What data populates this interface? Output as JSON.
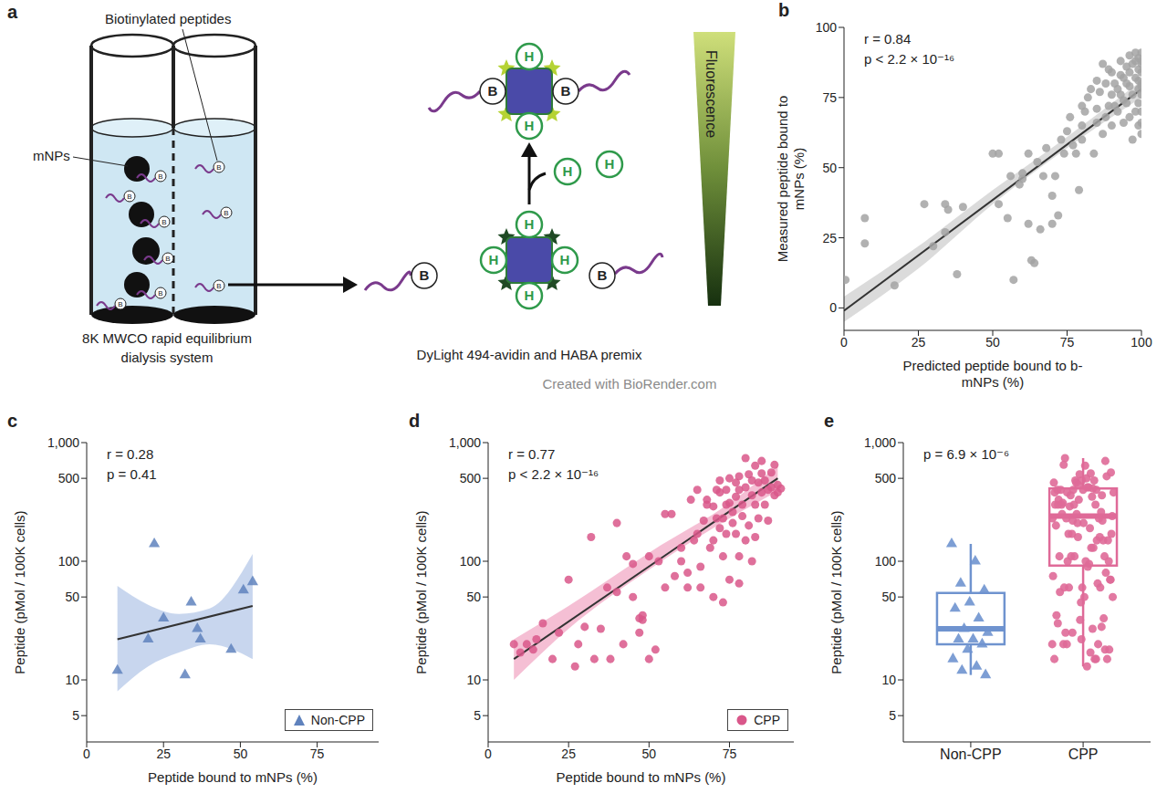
{
  "diagram": {
    "panel": "a",
    "peptide_label": "Biotinylated peptides",
    "particle_label": "mNPs",
    "dialysis_label": "8K MWCO rapid equilibrium dialysis system",
    "premix_label": "DyLight 494-avidin and HABA premix",
    "gradient_label": "Fluorescence",
    "credit": "Created with BioRender.com",
    "biotin_symbol": "B",
    "haba_symbol": "H"
  },
  "chart_data": [
    {
      "panel": "b",
      "type": "scatter",
      "x_label": "Predicted peptide bound to b-mNPs (%)",
      "y_label": "Measured peptide bound to mNPs (%)",
      "xlim": [
        0,
        100
      ],
      "xticks": [
        0,
        25,
        50,
        75,
        100
      ],
      "ylim": [
        -8,
        100
      ],
      "yticks": [
        0,
        25,
        50,
        75,
        100
      ],
      "annotations": [
        "r = 0.84",
        "p < 2.2 × 10⁻¹⁶"
      ],
      "series": [
        {
          "type": "area",
          "color": "#cfcfcf",
          "x": [
            0,
            25,
            50,
            75,
            100
          ],
          "lower": [
            -5,
            14,
            37,
            57,
            75
          ],
          "upper": [
            4,
            22,
            42,
            61,
            81
          ]
        },
        {
          "type": "line",
          "color": "#333333",
          "x": [
            0,
            100
          ],
          "values": [
            -1,
            78
          ]
        },
        {
          "type": "scatter",
          "color": "#a3a3a3",
          "marker": "circle",
          "x": [
            0.5,
            7,
            7,
            17,
            27,
            30,
            34,
            35,
            34,
            38,
            40,
            50,
            52,
            52,
            55,
            56,
            57,
            59,
            60,
            60,
            62,
            62,
            63,
            64,
            65,
            66,
            67,
            68,
            70,
            70,
            71,
            72,
            73,
            74,
            75,
            76,
            77,
            78,
            79,
            80,
            80,
            80,
            81,
            82,
            83,
            84,
            85,
            85,
            85,
            86,
            87,
            87,
            88,
            88,
            89,
            89,
            90,
            90,
            90,
            91,
            91,
            92,
            92,
            93,
            93,
            93,
            94,
            94,
            94,
            95,
            95,
            95,
            96,
            96,
            96,
            96,
            97,
            97,
            97,
            98,
            98,
            98,
            98,
            99,
            99,
            99,
            99,
            99,
            99,
            100,
            100,
            100,
            100,
            100,
            100,
            100,
            100,
            100,
            100
          ],
          "values": [
            10,
            32,
            23,
            8,
            37,
            22,
            37,
            35,
            27,
            12,
            36,
            55,
            55,
            37,
            32,
            47,
            10,
            44,
            48,
            46,
            30,
            55,
            17,
            16,
            52,
            28,
            47,
            57,
            40,
            30,
            47,
            33,
            60,
            55,
            63,
            68,
            58,
            55,
            42,
            65,
            60,
            72,
            70,
            75,
            78,
            55,
            71,
            66,
            81,
            77,
            62,
            87,
            80,
            68,
            72,
            85,
            65,
            76,
            84,
            80,
            72,
            70,
            78,
            88,
            83,
            76,
            82,
            66,
            74,
            86,
            80,
            73,
            90,
            68,
            79,
            84,
            60,
            87,
            76,
            82,
            88,
            70,
            91,
            85,
            78,
            65,
            89,
            73,
            81,
            87,
            80,
            76,
            91,
            70,
            84,
            62,
            88,
            79,
            66
          ]
        }
      ]
    },
    {
      "panel": "c",
      "type": "scatter",
      "log": "y",
      "legend": "lower right",
      "x_label": "Peptide bound to mNPs (%)",
      "y_label": "Peptide (pMol / 100K cells)",
      "xlim": [
        0,
        95
      ],
      "xticks": [
        0,
        25,
        50,
        75
      ],
      "ylim": [
        3,
        1000
      ],
      "yticks": [
        5,
        10,
        50,
        100,
        500,
        {
          "value": 1000,
          "label": "1,000"
        }
      ],
      "annotations": [
        "r = 0.28",
        "p = 0.41"
      ],
      "series": [
        {
          "type": "area",
          "color": "#b5c8e8",
          "x": [
            10,
            20,
            30,
            40,
            54
          ],
          "lower": [
            8,
            13,
            17,
            20,
            15
          ],
          "upper": [
            62,
            43,
            36,
            40,
            115
          ]
        },
        {
          "type": "line",
          "color": "#333333",
          "x": [
            10,
            54
          ],
          "values": [
            22,
            42
          ]
        },
        {
          "type": "scatter",
          "name": "Non-CPP",
          "color": "#5f82bd",
          "marker": "triangle",
          "x": [
            10,
            20,
            22,
            25,
            32,
            34,
            36,
            37,
            47,
            51,
            54
          ],
          "values": [
            12,
            22,
            140,
            33,
            11,
            45,
            27,
            22,
            18,
            57,
            67
          ]
        }
      ]
    },
    {
      "panel": "d",
      "type": "scatter",
      "log": "y",
      "legend": "lower right",
      "x_label": "Peptide bound to mNPs (%)",
      "y_label": "Peptide (pMol / 100K cells)",
      "xlim": [
        0,
        95
      ],
      "xticks": [
        0,
        25,
        50,
        75
      ],
      "ylim": [
        3,
        1000
      ],
      "yticks": [
        5,
        10,
        50,
        100,
        500,
        {
          "value": 1000,
          "label": "1,000"
        }
      ],
      "annotations": [
        "r = 0.77",
        "p < 2.2 × 10⁻¹⁶"
      ],
      "series": [
        {
          "type": "area",
          "color": "#f2aac6",
          "x": [
            8,
            25,
            50,
            75,
            90
          ],
          "lower": [
            10,
            27,
            85,
            230,
            390
          ],
          "upper": [
            22,
            42,
            118,
            310,
            640
          ]
        },
        {
          "type": "line",
          "color": "#333333",
          "x": [
            8,
            90
          ],
          "values": [
            15,
            500
          ]
        },
        {
          "type": "scatter",
          "name": "CPP",
          "color": "#d9578a",
          "marker": "circle",
          "x": [
            8,
            10,
            12,
            14,
            15,
            17,
            20,
            22,
            25,
            27,
            28,
            30,
            32,
            33,
            35,
            37,
            38,
            40,
            40,
            42,
            43,
            45,
            45,
            47,
            47,
            48,
            48,
            50,
            50,
            52,
            53,
            55,
            55,
            57,
            58,
            60,
            60,
            62,
            62,
            63,
            64,
            65,
            65,
            66,
            66,
            67,
            68,
            68,
            69,
            70,
            70,
            70,
            71,
            71,
            72,
            72,
            72,
            73,
            73,
            73,
            74,
            74,
            74,
            75,
            75,
            75,
            76,
            76,
            77,
            77,
            77,
            78,
            78,
            78,
            78,
            79,
            79,
            80,
            80,
            80,
            81,
            81,
            82,
            82,
            82,
            83,
            83,
            83,
            84,
            84,
            85,
            85,
            85,
            86,
            86,
            87,
            87,
            88,
            88,
            89,
            89,
            90,
            90,
            91
          ],
          "values": [
            20,
            17,
            20,
            18,
            22,
            30,
            15,
            25,
            70,
            13,
            20,
            28,
            160,
            15,
            27,
            60,
            15,
            210,
            55,
            20,
            110,
            50,
            95,
            25,
            33,
            32,
            35,
            15,
            110,
            18,
            100,
            250,
            60,
            250,
            75,
            130,
            100,
            80,
            60,
            330,
            150,
            400,
            170,
            90,
            60,
            220,
            330,
            300,
            130,
            290,
            150,
            50,
            400,
            230,
            480,
            380,
            190,
            230,
            110,
            45,
            400,
            300,
            170,
            70,
            500,
            310,
            260,
            210,
            460,
            350,
            170,
            520,
            400,
            110,
            65,
            300,
            240,
            420,
            740,
            150,
            540,
            200,
            480,
            360,
            100,
            640,
            300,
            160,
            460,
            230,
            550,
            380,
            700,
            480,
            300,
            400,
            220,
            560,
            420,
            650,
            360,
            440,
            380,
            410
          ]
        }
      ]
    },
    {
      "panel": "e",
      "type": "box",
      "log": "y",
      "y_label": "Peptide (pMol / 100K cells)",
      "categories": [
        "Non-CPP",
        "CPP"
      ],
      "ylim": [
        3,
        1000
      ],
      "yticks": [
        5,
        10,
        50,
        100,
        500,
        {
          "value": 1000,
          "label": "1,000"
        }
      ],
      "annotations": [
        "p = 6.9 × 10⁻⁶"
      ],
      "boxes": [
        {
          "color": "#6f93cf",
          "marker": "triangle",
          "whisker_low": 11,
          "q1": 20,
          "median": 27,
          "q3": 54,
          "whisker_high": 140,
          "values": [
            140,
            100,
            65,
            57,
            45,
            40,
            33,
            27,
            25,
            22,
            22,
            20,
            18,
            15,
            13,
            12,
            11
          ]
        },
        {
          "color": "#df6a98",
          "marker": "circle",
          "whisker_low": 13,
          "q1": 92,
          "median": 240,
          "q3": 410,
          "whisker_high": 740,
          "values": [
            20,
            17,
            20,
            18,
            22,
            30,
            15,
            25,
            70,
            13,
            20,
            28,
            160,
            15,
            27,
            60,
            15,
            210,
            55,
            20,
            110,
            50,
            95,
            25,
            33,
            32,
            35,
            15,
            110,
            18,
            100,
            250,
            60,
            250,
            75,
            130,
            100,
            80,
            60,
            330,
            150,
            400,
            170,
            90,
            60,
            220,
            330,
            300,
            130,
            290,
            150,
            50,
            400,
            230,
            480,
            380,
            190,
            230,
            110,
            45,
            400,
            300,
            170,
            70,
            500,
            310,
            260,
            210,
            460,
            350,
            170,
            520,
            400,
            110,
            65,
            300,
            240,
            420,
            740,
            150,
            540,
            200,
            480,
            360,
            100,
            640,
            300,
            160,
            460,
            230,
            550,
            380,
            700,
            480,
            300,
            400,
            220,
            560,
            420,
            650,
            360,
            440,
            380,
            410
          ]
        }
      ]
    }
  ]
}
